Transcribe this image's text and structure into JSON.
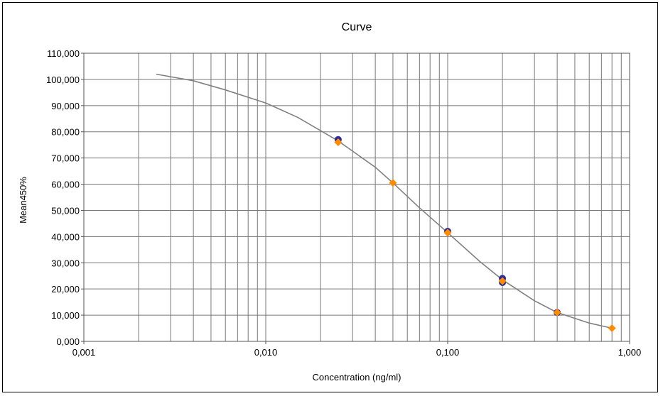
{
  "chart_data": {
    "type": "scatter",
    "title": "Curve",
    "xlabel": "Concentration (ng/ml)",
    "ylabel": "Mean450%",
    "x_scale": "log",
    "xlim": [
      0.001,
      1.0
    ],
    "ylim": [
      0,
      110000
    ],
    "grid": true,
    "x_ticks": [
      {
        "value": 0.001,
        "label": "0,001"
      },
      {
        "value": 0.01,
        "label": "0,010"
      },
      {
        "value": 0.1,
        "label": "0,100"
      },
      {
        "value": 1.0,
        "label": "1,000"
      }
    ],
    "y_ticks": [
      {
        "value": 0,
        "label": "0,000"
      },
      {
        "value": 10000,
        "label": "10,000"
      },
      {
        "value": 20000,
        "label": "20,000"
      },
      {
        "value": 30000,
        "label": "30,000"
      },
      {
        "value": 40000,
        "label": "40,000"
      },
      {
        "value": 50000,
        "label": "50,000"
      },
      {
        "value": 60000,
        "label": "60,000"
      },
      {
        "value": 70000,
        "label": "70,000"
      },
      {
        "value": 80000,
        "label": "80,000"
      },
      {
        "value": 90000,
        "label": "90,000"
      },
      {
        "value": 100000,
        "label": "100,000"
      },
      {
        "value": 110000,
        "label": "110,000"
      }
    ],
    "series": [
      {
        "color": "#2b2b9a",
        "marker": "circle",
        "points": [
          {
            "x": 0.025,
            "y": 77000
          },
          {
            "x": 0.2,
            "y": 24000
          },
          {
            "x": 0.2,
            "y": 22500
          },
          {
            "x": 0.1,
            "y": 42000
          },
          {
            "x": 0.4,
            "y": 11000
          }
        ]
      },
      {
        "color": "#ff8c00",
        "marker": "diamond",
        "points": [
          {
            "x": 0.025,
            "y": 76000
          },
          {
            "x": 0.05,
            "y": 60500
          },
          {
            "x": 0.1,
            "y": 41500
          },
          {
            "x": 0.2,
            "y": 23000
          },
          {
            "x": 0.4,
            "y": 11000
          },
          {
            "x": 0.8,
            "y": 5000
          }
        ]
      }
    ],
    "fit_curve": {
      "color": "#808080",
      "points": [
        {
          "x": 0.0025,
          "y": 102000
        },
        {
          "x": 0.004,
          "y": 99500
        },
        {
          "x": 0.006,
          "y": 96000
        },
        {
          "x": 0.01,
          "y": 91000
        },
        {
          "x": 0.015,
          "y": 85500
        },
        {
          "x": 0.025,
          "y": 76500
        },
        {
          "x": 0.04,
          "y": 66500
        },
        {
          "x": 0.05,
          "y": 60500
        },
        {
          "x": 0.07,
          "y": 51000
        },
        {
          "x": 0.1,
          "y": 41500
        },
        {
          "x": 0.15,
          "y": 30500
        },
        {
          "x": 0.2,
          "y": 23500
        },
        {
          "x": 0.3,
          "y": 15500
        },
        {
          "x": 0.4,
          "y": 11000
        },
        {
          "x": 0.6,
          "y": 7000
        },
        {
          "x": 0.8,
          "y": 5000
        }
      ]
    }
  }
}
